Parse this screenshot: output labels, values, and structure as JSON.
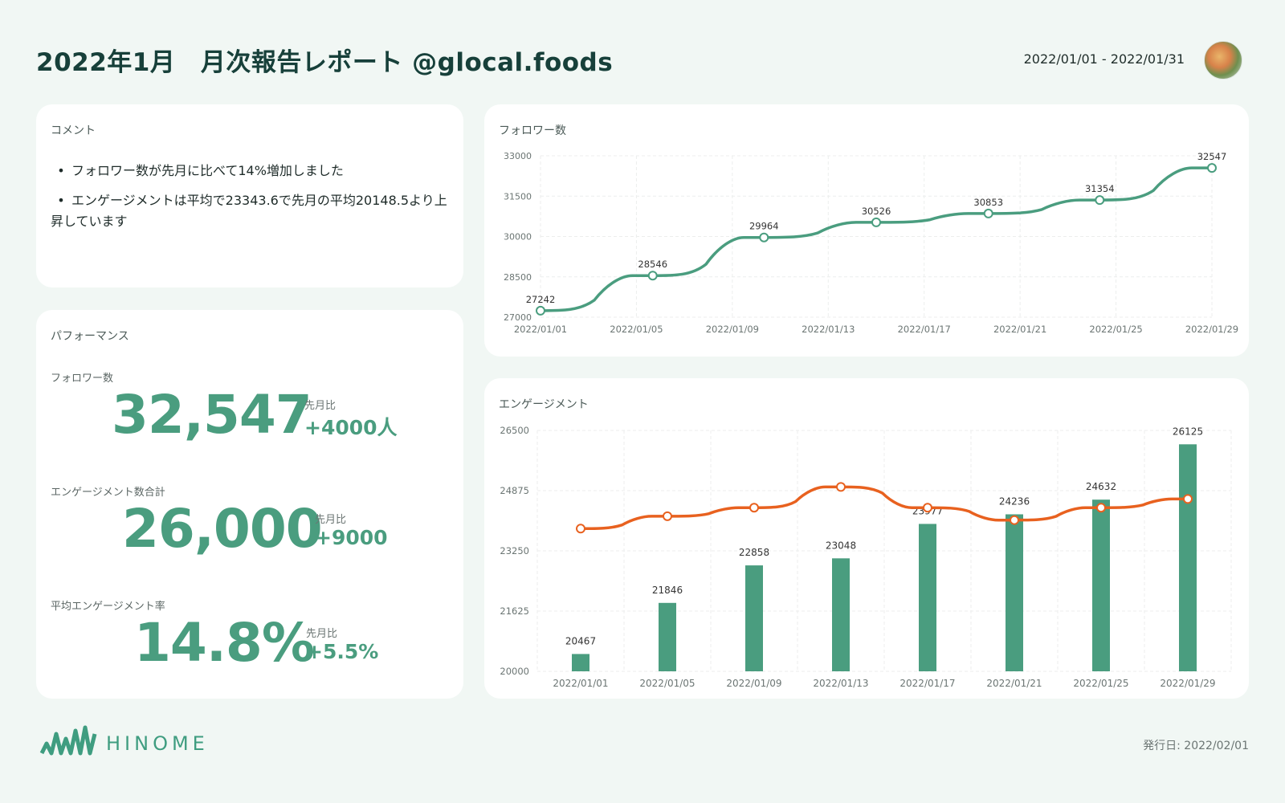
{
  "header": {
    "title": "2022年1月　月次報告レポート @glocal.foods",
    "date_range": "2022/01/01 - 2022/01/31"
  },
  "comment": {
    "title": "コメント",
    "items": [
      "フォロワー数が先月に比べて14%増加しました",
      "エンゲージメントは平均で23343.6で先月の平均20148.5より上昇しています"
    ]
  },
  "performance": {
    "title": "パフォーマンス",
    "compare_label": "先月比",
    "metrics": [
      {
        "label": "フォロワー数",
        "value": "32,547",
        "delta": "+4000人"
      },
      {
        "label": "エンゲージメント数合計",
        "value": "26,000",
        "delta": "+9000"
      },
      {
        "label": "平均エンゲージメント率",
        "value": "14.8%",
        "delta": "+5.5%"
      }
    ]
  },
  "colors": {
    "green": "#4a9d7f",
    "orange": "#e8611f",
    "grid": "#eceeed",
    "tick": "#6b7573"
  },
  "chart_data": [
    {
      "type": "line",
      "title": "フォロワー数",
      "x": [
        "2022/01/01",
        "2022/01/05",
        "2022/01/09",
        "2022/01/13",
        "2022/01/17",
        "2022/01/21",
        "2022/01/25",
        "2022/01/29"
      ],
      "points": [
        {
          "x_index": 0,
          "value": 27242
        },
        {
          "x_index": 1.17,
          "value": 28546
        },
        {
          "x_index": 2.33,
          "value": 29964
        },
        {
          "x_index": 3.5,
          "value": 30526
        },
        {
          "x_index": 4.67,
          "value": 30853
        },
        {
          "x_index": 5.83,
          "value": 31354
        },
        {
          "x_index": 7.0,
          "value": 32547
        }
      ],
      "ylim": [
        27000,
        33000
      ],
      "yticks": [
        27000,
        28500,
        30000,
        31500,
        33000
      ],
      "xlabel": "",
      "ylabel": ""
    },
    {
      "type": "bar",
      "title": "エンゲージメント",
      "categories": [
        "2022/01/01",
        "2022/01/05",
        "2022/01/09",
        "2022/01/13",
        "2022/01/17",
        "2022/01/21",
        "2022/01/25",
        "2022/01/29"
      ],
      "series": [
        {
          "name": "bars",
          "type": "bar",
          "values": [
            20467,
            21846,
            22858,
            23048,
            23977,
            24236,
            24632,
            26125
          ]
        },
        {
          "name": "line",
          "type": "line",
          "values": [
            23850,
            24185,
            24415,
            24975,
            24415,
            24080,
            24415,
            24650
          ]
        }
      ],
      "ylim": [
        20000,
        26500
      ],
      "yticks": [
        20000,
        21625,
        23250,
        24875,
        26500
      ],
      "xlabel": "",
      "ylabel": ""
    }
  ],
  "footer": {
    "brand": "HINOME",
    "issue_date": "発行日: 2022/02/01"
  }
}
